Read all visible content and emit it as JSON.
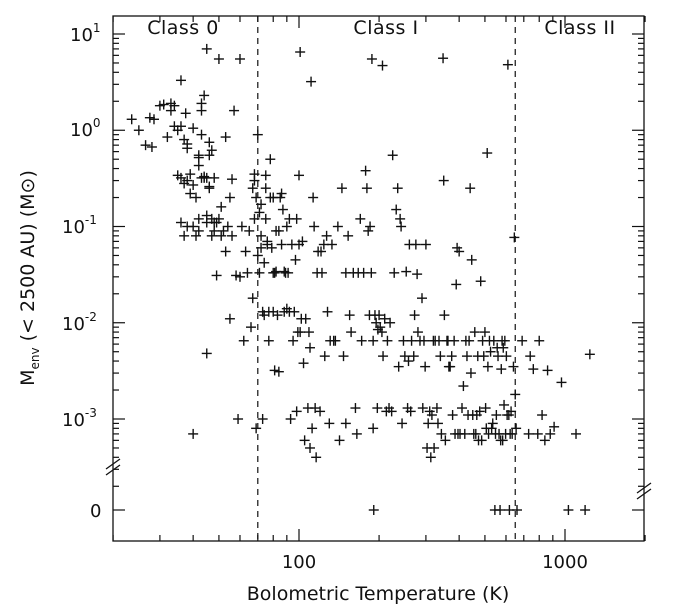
{
  "chart_data": {
    "type": "scatter",
    "title": "",
    "xlabel": "Bolometric Temperature (K)",
    "ylabel": {
      "main": "M",
      "sub": "env",
      "rest": " (< 2500 AU) (M",
      "sun": "⊙",
      "close": ")"
    },
    "x_scale": "log",
    "y_scale": "log",
    "xlim": [
      20,
      2000
    ],
    "ylim_log": [
      0.0001,
      20
    ],
    "x_ticks": [
      {
        "value": 100,
        "label": "100"
      },
      {
        "value": 1000,
        "label": "1000"
      }
    ],
    "y_ticks": [
      {
        "value": 10,
        "label": "10",
        "exp": "1"
      },
      {
        "value": 1,
        "label": "10",
        "exp": "0"
      },
      {
        "value": 0.1,
        "label": "10",
        "exp": "-1"
      },
      {
        "value": 0.01,
        "label": "10",
        "exp": "-2"
      },
      {
        "value": 0.001,
        "label": "10",
        "exp": "-3"
      }
    ],
    "zero_label": "0",
    "class_boundaries": [
      70,
      650
    ],
    "regions": [
      {
        "name": "Class 0",
        "x": 42
      },
      {
        "name": "Class I",
        "x": 215
      },
      {
        "name": "Class II",
        "x": 1250
      }
    ],
    "marker": "+",
    "points": [
      [
        23.5,
        1.3
      ],
      [
        25,
        1.0
      ],
      [
        26.5,
        0.7
      ],
      [
        27.5,
        1.35
      ],
      [
        28,
        0.67
      ],
      [
        28.5,
        1.3
      ],
      [
        30,
        1.8
      ],
      [
        31,
        1.85
      ],
      [
        32,
        0.85
      ],
      [
        33,
        1.6
      ],
      [
        33,
        1.9
      ],
      [
        34,
        1.1
      ],
      [
        34,
        1.8
      ],
      [
        35,
        0.34
      ],
      [
        35,
        1.0
      ],
      [
        36,
        3.3
      ],
      [
        36,
        0.32
      ],
      [
        36,
        0.11
      ],
      [
        36,
        1.1
      ],
      [
        37,
        0.08
      ],
      [
        37,
        0.28
      ],
      [
        37,
        0.8
      ],
      [
        37.5,
        1.5
      ],
      [
        38,
        0.1
      ],
      [
        38,
        0.3
      ],
      [
        38,
        0.65
      ],
      [
        38,
        0.72
      ],
      [
        39,
        0.35
      ],
      [
        39,
        0.22
      ],
      [
        40,
        0.27
      ],
      [
        40,
        0.1
      ],
      [
        40,
        1.05
      ],
      [
        40,
        0.0007
      ],
      [
        41,
        0.2
      ],
      [
        41,
        0.08
      ],
      [
        42,
        0.55
      ],
      [
        42,
        0.09
      ],
      [
        42,
        0.12
      ],
      [
        42,
        0.52
      ],
      [
        42,
        0.43
      ],
      [
        43,
        0.32
      ],
      [
        43,
        1.6
      ],
      [
        43,
        1.9
      ],
      [
        43,
        0.9
      ],
      [
        44,
        0.33
      ],
      [
        44,
        0.32
      ],
      [
        44,
        2.3
      ],
      [
        45,
        7.0
      ],
      [
        45,
        0.32
      ],
      [
        45,
        0.11
      ],
      [
        45,
        0.13
      ],
      [
        45,
        0.0048
      ],
      [
        46,
        0.25
      ],
      [
        46,
        0.75
      ],
      [
        46,
        0.26
      ],
      [
        46,
        0.55
      ],
      [
        47,
        0.12
      ],
      [
        47,
        0.62
      ],
      [
        47,
        0.08
      ],
      [
        48,
        0.11
      ],
      [
        48,
        0.09
      ],
      [
        48,
        0.32
      ],
      [
        49,
        0.031
      ],
      [
        49,
        0.11
      ],
      [
        50,
        0.12
      ],
      [
        50,
        5.5
      ],
      [
        51,
        0.08
      ],
      [
        51,
        0.16
      ],
      [
        52,
        0.09
      ],
      [
        53,
        0.055
      ],
      [
        53,
        0.85
      ],
      [
        54,
        0.1
      ],
      [
        55,
        0.011
      ],
      [
        55,
        0.2
      ],
      [
        56,
        0.08
      ],
      [
        56,
        0.31
      ],
      [
        57,
        1.6
      ],
      [
        58,
        0.031
      ],
      [
        59,
        0.001
      ],
      [
        60,
        0.03
      ],
      [
        60,
        5.5
      ],
      [
        61,
        0.1
      ],
      [
        62,
        0.0065
      ],
      [
        63,
        0.055
      ],
      [
        64,
        0.033
      ],
      [
        65,
        0.09
      ],
      [
        66,
        0.009
      ],
      [
        67,
        0.018
      ],
      [
        67,
        0.25
      ],
      [
        68,
        0.3
      ],
      [
        68,
        0.35
      ],
      [
        68,
        0.12
      ],
      [
        69,
        0.2
      ],
      [
        69,
        0.0008
      ],
      [
        70,
        0.9
      ],
      [
        70,
        0.05
      ],
      [
        71,
        0.14
      ],
      [
        71,
        0.033
      ],
      [
        72,
        0.08
      ],
      [
        72,
        0.06
      ],
      [
        72,
        0.17
      ],
      [
        73,
        0.001
      ],
      [
        73,
        0.013
      ],
      [
        74,
        0.012
      ],
      [
        74,
        0.042
      ],
      [
        75,
        0.25
      ],
      [
        75,
        0.12
      ],
      [
        75,
        0.34
      ],
      [
        76,
        0.065
      ],
      [
        76,
        0.07
      ],
      [
        77,
        0.013
      ],
      [
        77,
        0.0065
      ],
      [
        78,
        0.5
      ],
      [
        78,
        0.2
      ],
      [
        79,
        0.06
      ],
      [
        80,
        0.013
      ],
      [
        80,
        0.033
      ],
      [
        80,
        0.2
      ],
      [
        81,
        0.033
      ],
      [
        81,
        0.0032
      ],
      [
        82,
        0.09
      ],
      [
        82,
        0.034
      ],
      [
        83,
        0.012
      ],
      [
        84,
        0.0031
      ],
      [
        84,
        0.09
      ],
      [
        85,
        0.2
      ],
      [
        86,
        0.065
      ],
      [
        86,
        0.22
      ],
      [
        87,
        0.15
      ],
      [
        88,
        0.034
      ],
      [
        88,
        0.013
      ],
      [
        89,
        0.033
      ],
      [
        90,
        0.014
      ],
      [
        90,
        0.1
      ],
      [
        91,
        0.033
      ],
      [
        92,
        0.12
      ],
      [
        92,
        0.013
      ],
      [
        93,
        0.001
      ],
      [
        94,
        0.065
      ],
      [
        95,
        0.0065
      ],
      [
        96,
        0.013
      ],
      [
        97,
        0.045
      ],
      [
        98,
        0.0012
      ],
      [
        98,
        0.12
      ],
      [
        99,
        0.008
      ],
      [
        100,
        0.34
      ],
      [
        100,
        0.065
      ],
      [
        101,
        6.5
      ],
      [
        101,
        0.008
      ],
      [
        102,
        0.011
      ],
      [
        103,
        0.07
      ],
      [
        104,
        0.0038
      ],
      [
        105,
        0.0006
      ],
      [
        106,
        0.011
      ],
      [
        108,
        0.0013
      ],
      [
        109,
        0.008
      ],
      [
        110,
        0.0055
      ],
      [
        110,
        0.0005
      ],
      [
        111,
        3.2
      ],
      [
        112,
        0.0008
      ],
      [
        113,
        0.2
      ],
      [
        114,
        0.1
      ],
      [
        115,
        0.0013
      ],
      [
        116,
        0.0004
      ],
      [
        117,
        0.033
      ],
      [
        118,
        0.055
      ],
      [
        120,
        0.0012
      ],
      [
        121,
        0.055
      ],
      [
        122,
        0.033
      ],
      [
        124,
        0.065
      ],
      [
        125,
        0.0045
      ],
      [
        127,
        0.08
      ],
      [
        128,
        0.013
      ],
      [
        130,
        0.0009
      ],
      [
        131,
        0.0065
      ],
      [
        133,
        0.065
      ],
      [
        135,
        0.0065
      ],
      [
        137,
        0.0065
      ],
      [
        140,
        0.1
      ],
      [
        142,
        0.0006
      ],
      [
        145,
        0.25
      ],
      [
        147,
        0.0045
      ],
      [
        150,
        0.033
      ],
      [
        150,
        0.0009
      ],
      [
        153,
        0.08
      ],
      [
        155,
        0.012
      ],
      [
        157,
        0.008
      ],
      [
        160,
        0.033
      ],
      [
        163,
        0.0013
      ],
      [
        165,
        0.0007
      ],
      [
        167,
        0.033
      ],
      [
        170,
        0.12
      ],
      [
        172,
        0.0065
      ],
      [
        175,
        0.033
      ],
      [
        178,
        0.38
      ],
      [
        180,
        0.25
      ],
      [
        182,
        0.09
      ],
      [
        184,
        0.012
      ],
      [
        185,
        0.1
      ],
      [
        187,
        0.033
      ],
      [
        188,
        5.5
      ],
      [
        190,
        0.0065
      ],
      [
        190,
        0.0008
      ],
      [
        191,
        5e-05
      ],
      [
        193,
        0.012
      ],
      [
        195,
        0.01
      ],
      [
        197,
        0.0013
      ],
      [
        198,
        0.0085
      ],
      [
        200,
        0.012
      ],
      [
        202,
        0.009
      ],
      [
        205,
        0.008
      ],
      [
        206,
        4.7
      ],
      [
        207,
        0.0045
      ],
      [
        210,
        0.011
      ],
      [
        213,
        0.0012
      ],
      [
        215,
        0.0065
      ],
      [
        218,
        0.0013
      ],
      [
        220,
        0.01
      ],
      [
        223,
        0.0012
      ],
      [
        225,
        0.55
      ],
      [
        228,
        0.033
      ],
      [
        232,
        0.15
      ],
      [
        235,
        0.25
      ],
      [
        237,
        0.0035
      ],
      [
        240,
        0.12
      ],
      [
        242,
        0.1
      ],
      [
        244,
        0.0009
      ],
      [
        247,
        0.0065
      ],
      [
        250,
        0.0045
      ],
      [
        253,
        0.034
      ],
      [
        256,
        0.0013
      ],
      [
        258,
        0.004
      ],
      [
        260,
        0.065
      ],
      [
        263,
        0.0012
      ],
      [
        265,
        0.0065
      ],
      [
        270,
        0.0045
      ],
      [
        272,
        0.012
      ],
      [
        275,
        0.065
      ],
      [
        278,
        0.032
      ],
      [
        280,
        0.008
      ],
      [
        285,
        0.0065
      ],
      [
        290,
        0.018
      ],
      [
        292,
        0.0013
      ],
      [
        295,
        0.0065
      ],
      [
        298,
        0.0035
      ],
      [
        300,
        0.065
      ],
      [
        303,
        0.0005
      ],
      [
        306,
        0.0009
      ],
      [
        310,
        0.0012
      ],
      [
        313,
        0.0004
      ],
      [
        316,
        0.0011
      ],
      [
        320,
        0.0065
      ],
      [
        322,
        0.0005
      ],
      [
        325,
        0.0065
      ],
      [
        330,
        0.0013
      ],
      [
        333,
        0.0009
      ],
      [
        336,
        0.0065
      ],
      [
        340,
        0.0045
      ],
      [
        343,
        0.0007
      ],
      [
        348,
        5.6
      ],
      [
        350,
        0.3
      ],
      [
        352,
        0.012
      ],
      [
        355,
        0.0006
      ],
      [
        360,
        0.0065
      ],
      [
        363,
        0.0065
      ],
      [
        366,
        0.0035
      ],
      [
        370,
        0.0035
      ],
      [
        375,
        0.0045
      ],
      [
        378,
        0.0011
      ],
      [
        383,
        0.0065
      ],
      [
        386,
        0.0007
      ],
      [
        390,
        0.025
      ],
      [
        393,
        0.06
      ],
      [
        396,
        0.0007
      ],
      [
        400,
        0.055
      ],
      [
        403,
        0.0007
      ],
      [
        410,
        0.0013
      ],
      [
        415,
        0.0022
      ],
      [
        420,
        0.0007
      ],
      [
        424,
        0.0065
      ],
      [
        428,
        0.0045
      ],
      [
        432,
        0.0011
      ],
      [
        436,
        0.0065
      ],
      [
        440,
        0.25
      ],
      [
        443,
        0.003
      ],
      [
        446,
        0.045
      ],
      [
        450,
        0.0011
      ],
      [
        454,
        0.0007
      ],
      [
        458,
        0.008
      ],
      [
        462,
        0.0007
      ],
      [
        466,
        0.0011
      ],
      [
        470,
        0.0045
      ],
      [
        473,
        0.0006
      ],
      [
        478,
        0.0012
      ],
      [
        482,
        0.027
      ],
      [
        486,
        0.0006
      ],
      [
        490,
        0.0065
      ],
      [
        495,
        0.0045
      ],
      [
        500,
        0.008
      ],
      [
        503,
        0.0013
      ],
      [
        506,
        0.0008
      ],
      [
        510,
        0.58
      ],
      [
        513,
        0.0035
      ],
      [
        516,
        0.0007
      ],
      [
        520,
        0.0065
      ],
      [
        525,
        0.005
      ],
      [
        530,
        0.0008
      ],
      [
        535,
        0.0009
      ],
      [
        540,
        0.0065
      ],
      [
        545,
        5e-05
      ],
      [
        548,
        0.0007
      ],
      [
        552,
        0.0011
      ],
      [
        556,
        0.0055
      ],
      [
        560,
        0.0045
      ],
      [
        565,
        0.0007
      ],
      [
        570,
        5e-05
      ],
      [
        573,
        0.0006
      ],
      [
        576,
        0.0033
      ],
      [
        580,
        0.0065
      ],
      [
        583,
        0.0006
      ],
      [
        586,
        0.0055
      ],
      [
        590,
        0.0014
      ],
      [
        594,
        0.0065
      ],
      [
        598,
        0.0007
      ],
      [
        602,
        0.0045
      ],
      [
        606,
        0.0011
      ],
      [
        610,
        4.8
      ],
      [
        615,
        0.0011
      ],
      [
        618,
        5e-05
      ],
      [
        622,
        0.0007
      ],
      [
        627,
        0.0012
      ],
      [
        633,
        0.0007
      ],
      [
        640,
        0.0035
      ],
      [
        645,
        0.077
      ],
      [
        650,
        0.0018
      ],
      [
        655,
        0.0008
      ],
      [
        660,
        5e-05
      ],
      [
        690,
        0.0065
      ],
      [
        730,
        0.0007
      ],
      [
        740,
        0.0045
      ],
      [
        760,
        0.0033
      ],
      [
        790,
        0.0007
      ],
      [
        800,
        0.0065
      ],
      [
        820,
        0.0011
      ],
      [
        840,
        0.0006
      ],
      [
        860,
        0.0032
      ],
      [
        880,
        0.0007
      ],
      [
        910,
        0.00083
      ],
      [
        970,
        0.0024
      ],
      [
        1030,
        5e-05
      ],
      [
        1100,
        0.0007
      ],
      [
        1190,
        5e-05
      ],
      [
        1240,
        0.0047
      ]
    ]
  }
}
